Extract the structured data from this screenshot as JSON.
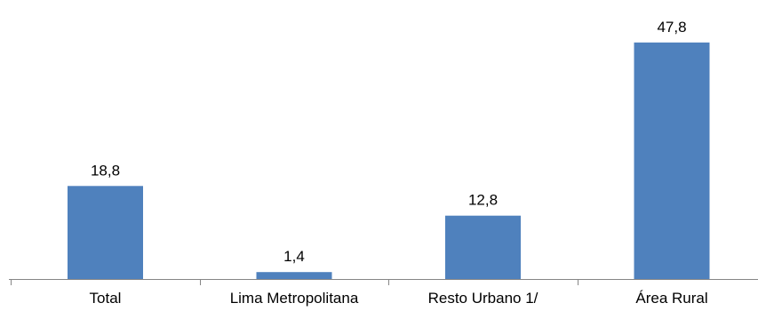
{
  "chart_data": {
    "type": "bar",
    "categories": [
      "Total",
      "Lima Metropolitana",
      "Resto Urbano 1/",
      "Área Rural"
    ],
    "values": [
      18.8,
      1.4,
      12.8,
      47.8
    ],
    "data_labels": [
      "18,8",
      "1,4",
      "12,8",
      "47,8"
    ],
    "title": "",
    "xlabel": "",
    "ylabel": "",
    "ylim": [
      0,
      50
    ],
    "grid": false,
    "legend": "none",
    "bar_color": "#4f81bd",
    "axis_color": "#868686"
  }
}
